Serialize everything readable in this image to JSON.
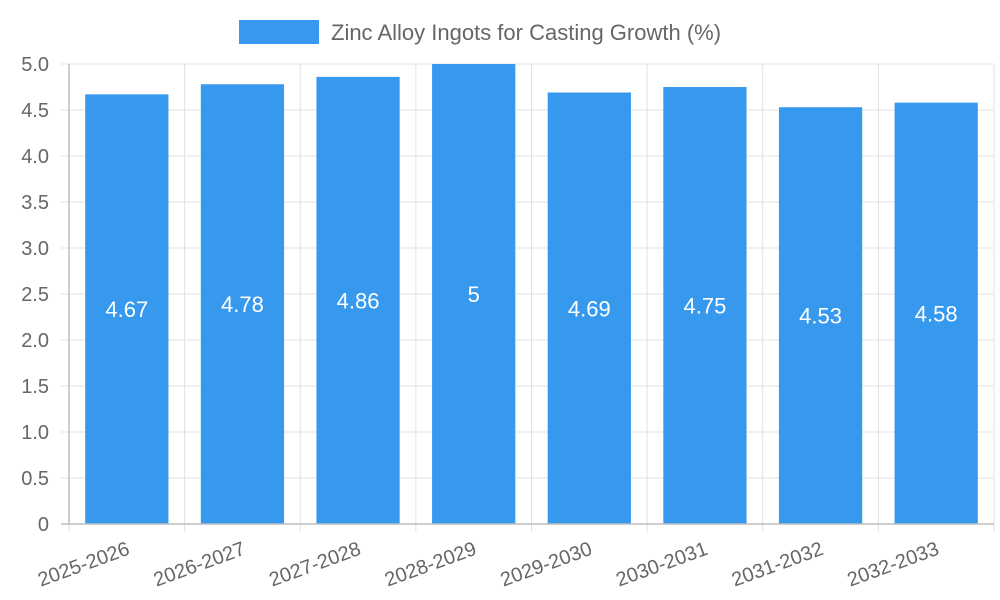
{
  "chart_data": {
    "type": "bar",
    "title": "",
    "xlabel": "",
    "ylabel": "",
    "categories": [
      "2025-2026",
      "2026-2027",
      "2027-2028",
      "2028-2029",
      "2029-2030",
      "2030-2031",
      "2031-2032",
      "2032-2033"
    ],
    "series": [
      {
        "name": "Zinc Alloy Ingots for Casting Growth (%)",
        "values": [
          4.67,
          4.78,
          4.86,
          5,
          4.69,
          4.75,
          4.53,
          4.58
        ],
        "color": "#3799ee"
      }
    ],
    "data_labels": [
      "4.67",
      "4.78",
      "4.86",
      "5",
      "4.69",
      "4.75",
      "4.53",
      "4.58"
    ],
    "ylim": [
      0,
      5.0
    ],
    "yticks": [
      "0",
      "0.5",
      "1.0",
      "1.5",
      "2.0",
      "2.5",
      "3.0",
      "3.5",
      "4.0",
      "4.5",
      "5.0"
    ],
    "grid": true,
    "legend_position": "top-center"
  }
}
